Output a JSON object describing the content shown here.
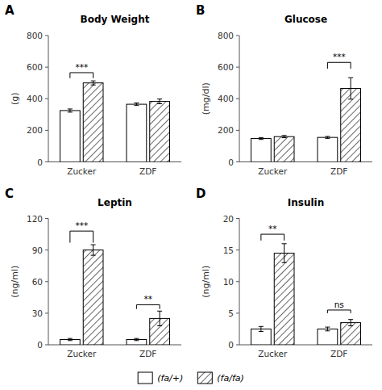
{
  "chart_data": [
    {
      "type": "bar",
      "panel_label": "A",
      "title": "Body Weight",
      "ylabel": "(g)",
      "categories": [
        "Zucker",
        "ZDF"
      ],
      "series": [
        {
          "name": "(fa/+)",
          "color": "#ffffff",
          "values": [
            325,
            365
          ],
          "errors": [
            10,
            8
          ]
        },
        {
          "name": "(fa/fa)",
          "color": "#ffffff",
          "values": [
            500,
            383
          ],
          "errors": [
            13,
            15
          ]
        }
      ],
      "ylim": [
        0,
        800
      ],
      "yticks": [
        0,
        200,
        400,
        600,
        800
      ],
      "grid": false,
      "legend": "bottom",
      "annotations": [
        {
          "text": "***",
          "group": 0,
          "y_top": 565,
          "y_bar": 530
        }
      ]
    },
    {
      "type": "bar",
      "panel_label": "B",
      "title": "Glucose",
      "ylabel": "(mg/dl)",
      "categories": [
        "Zucker",
        "ZDF"
      ],
      "series": [
        {
          "name": "(fa/+)",
          "color": "#ffffff",
          "values": [
            148,
            155
          ],
          "errors": [
            6,
            6
          ]
        },
        {
          "name": "(fa/fa)",
          "color": "#ffffff",
          "values": [
            160,
            465
          ],
          "errors": [
            7,
            68
          ]
        }
      ],
      "ylim": [
        0,
        800
      ],
      "yticks": [
        0,
        200,
        400,
        600,
        800
      ],
      "grid": false,
      "annotations": [
        {
          "text": "***",
          "group": 1,
          "y_top": 630,
          "y_bar": 590
        }
      ]
    },
    {
      "type": "bar",
      "panel_label": "C",
      "title": "Leptin",
      "ylabel": "(ng/ml)",
      "categories": [
        "Zucker",
        "ZDF"
      ],
      "series": [
        {
          "name": "(fa/+)",
          "color": "#ffffff",
          "values": [
            5,
            5
          ],
          "errors": [
            1,
            1
          ]
        },
        {
          "name": "(fa/fa)",
          "color": "#ffffff",
          "values": [
            90,
            25
          ],
          "errors": [
            5,
            7
          ]
        }
      ],
      "ylim": [
        0,
        120
      ],
      "yticks": [
        0,
        30,
        60,
        90,
        120
      ],
      "grid": false,
      "annotations": [
        {
          "text": "***",
          "group": 0,
          "y_top": 108,
          "y_bar": 97
        },
        {
          "text": "**",
          "group": 1,
          "y_top": 38,
          "y_bar": 34
        }
      ]
    },
    {
      "type": "bar",
      "panel_label": "D",
      "title": "Insulin",
      "ylabel": "(ng/ml)",
      "categories": [
        "Zucker",
        "ZDF"
      ],
      "series": [
        {
          "name": "(fa/+)",
          "color": "#ffffff",
          "values": [
            2.5,
            2.5
          ],
          "errors": [
            0.4,
            0.3
          ]
        },
        {
          "name": "(fa/fa)",
          "color": "#ffffff",
          "values": [
            14.5,
            3.5
          ],
          "errors": [
            1.5,
            0.5
          ]
        }
      ],
      "ylim": [
        0,
        20
      ],
      "yticks": [
        0,
        5,
        10,
        15,
        20
      ],
      "grid": false,
      "annotations": [
        {
          "text": "**",
          "group": 0,
          "y_top": 17.5,
          "y_bar": 16.5
        },
        {
          "text": "ns",
          "group": 1,
          "y_top": 5.5,
          "y_bar": 5.0
        }
      ]
    }
  ]
}
